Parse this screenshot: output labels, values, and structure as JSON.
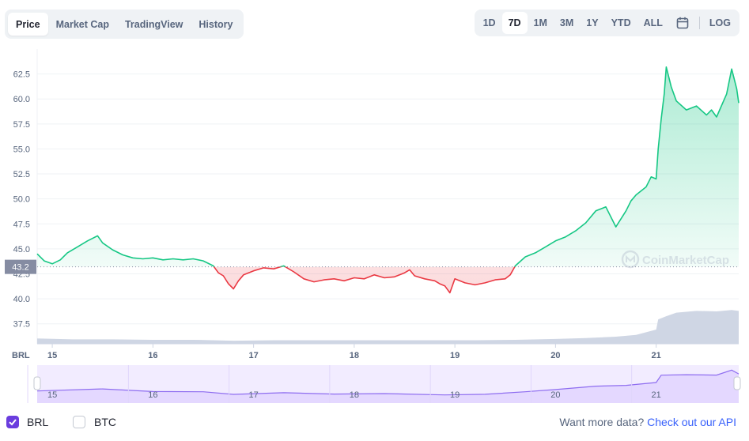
{
  "tabs": [
    {
      "label": "Price",
      "active": true
    },
    {
      "label": "Market Cap",
      "active": false
    },
    {
      "label": "TradingView",
      "active": false
    },
    {
      "label": "History",
      "active": false
    }
  ],
  "ranges": [
    {
      "label": "1D",
      "active": false
    },
    {
      "label": "7D",
      "active": true
    },
    {
      "label": "1M",
      "active": false
    },
    {
      "label": "3M",
      "active": false
    },
    {
      "label": "1Y",
      "active": false
    },
    {
      "label": "YTD",
      "active": false
    },
    {
      "label": "ALL",
      "active": false
    }
  ],
  "log_label": "LOG",
  "calendar_icon": "calendar-icon",
  "currency_label": "BRL",
  "watermark": "CoinMarketCap",
  "colors": {
    "up": "#16c784",
    "down": "#ea3943",
    "volume": "#cfd6e4",
    "navigator": "#8e6df0",
    "accent": "#6a3dde",
    "link": "#3861fb"
  },
  "footer": {
    "brl_label": "BRL",
    "brl_checked": true,
    "btc_label": "BTC",
    "btc_checked": false,
    "more_text": "Want more data?",
    "more_link": "Check out our API"
  },
  "chart_data": {
    "type": "line",
    "title": "",
    "xlabel": "",
    "ylabel": "",
    "ylim": [
      35.5,
      65
    ],
    "yticks": [
      37.5,
      40.0,
      42.5,
      45.0,
      47.5,
      50.0,
      52.5,
      55.0,
      57.5,
      60.0,
      62.5
    ],
    "ytick_labels": [
      "37.5",
      "40.0",
      "42.5",
      "45.0",
      "47.5",
      "50.0",
      "52.5",
      "55.0",
      "57.5",
      "60.0",
      "62.5"
    ],
    "xlim": [
      14.85,
      21.82
    ],
    "xticks": [
      15,
      16,
      17,
      18,
      19,
      20,
      21
    ],
    "xtick_labels": [
      "15",
      "16",
      "17",
      "18",
      "19",
      "20",
      "21"
    ],
    "baseline": 43.2,
    "baseline_label": "43.2",
    "grid": true,
    "legend": "none",
    "series": [
      {
        "x": [
          14.85,
          14.92,
          15.0,
          15.08,
          15.15,
          15.25,
          15.35,
          15.45,
          15.5,
          15.6,
          15.7,
          15.8,
          15.9,
          16.0,
          16.1,
          16.2,
          16.3,
          16.4,
          16.5,
          16.6,
          16.65,
          16.7,
          16.75,
          16.8,
          16.85,
          16.9,
          17.0,
          17.1,
          17.2,
          17.3,
          17.4,
          17.5,
          17.6,
          17.7,
          17.8,
          17.9,
          18.0,
          18.1,
          18.2,
          18.3,
          18.4,
          18.5,
          18.55,
          18.6,
          18.7,
          18.8,
          18.85,
          18.9,
          18.95,
          19.0,
          19.1,
          19.2,
          19.3,
          19.4,
          19.5,
          19.55,
          19.6,
          19.7,
          19.8,
          19.9,
          20.0,
          20.1,
          20.2,
          20.3,
          20.4,
          20.5,
          20.6,
          20.7,
          20.75,
          20.8,
          20.9,
          20.95,
          21.0,
          21.02,
          21.05,
          21.08,
          21.1,
          21.15,
          21.2,
          21.3,
          21.4,
          21.5,
          21.55,
          21.6,
          21.7,
          21.75,
          21.8,
          21.82
        ],
        "y": [
          44.5,
          43.8,
          43.5,
          43.9,
          44.6,
          45.2,
          45.8,
          46.3,
          45.6,
          44.9,
          44.4,
          44.1,
          44.0,
          44.1,
          43.9,
          44.0,
          43.9,
          44.0,
          43.8,
          43.3,
          42.6,
          42.3,
          41.5,
          41.0,
          41.8,
          42.4,
          42.8,
          43.1,
          43.0,
          43.3,
          42.7,
          42.0,
          41.7,
          41.9,
          42.0,
          41.8,
          42.1,
          42.0,
          42.4,
          42.1,
          42.2,
          42.6,
          42.9,
          42.3,
          42.0,
          41.8,
          41.5,
          41.3,
          40.6,
          42.0,
          41.6,
          41.4,
          41.6,
          41.9,
          42.0,
          42.4,
          43.3,
          44.2,
          44.6,
          45.2,
          45.8,
          46.2,
          46.8,
          47.6,
          48.8,
          49.2,
          47.2,
          48.8,
          49.8,
          50.4,
          51.2,
          52.2,
          52.0,
          55.0,
          58.0,
          60.5,
          63.2,
          61.2,
          59.8,
          58.9,
          59.3,
          58.4,
          58.9,
          58.2,
          60.5,
          63.0,
          61.0,
          59.6
        ]
      }
    ],
    "volume": {
      "x": [
        14.85,
        15.2,
        15.6,
        16.0,
        16.4,
        16.8,
        17.2,
        17.6,
        18.0,
        18.4,
        18.8,
        19.2,
        19.6,
        20.0,
        20.3,
        20.6,
        20.8,
        21.0,
        21.02,
        21.1,
        21.2,
        21.4,
        21.6,
        21.75,
        21.82
      ],
      "y": [
        0.12,
        0.1,
        0.1,
        0.09,
        0.09,
        0.07,
        0.08,
        0.08,
        0.08,
        0.08,
        0.08,
        0.08,
        0.09,
        0.11,
        0.13,
        0.16,
        0.2,
        0.32,
        0.55,
        0.62,
        0.7,
        0.74,
        0.73,
        0.76,
        0.74
      ]
    },
    "navigator": {
      "x": [
        14.85,
        15.5,
        16.0,
        16.5,
        16.8,
        17.3,
        17.8,
        18.3,
        18.9,
        19.3,
        19.7,
        20.0,
        20.4,
        20.7,
        21.0,
        21.05,
        21.3,
        21.6,
        21.75,
        21.82
      ],
      "y": [
        44.5,
        46.3,
        44.0,
        43.8,
        41.5,
        43.0,
        41.8,
        42.2,
        41.0,
        41.6,
        43.8,
        45.8,
        48.8,
        49.5,
        52.0,
        58.5,
        58.9,
        58.6,
        63.0,
        59.6
      ]
    }
  }
}
